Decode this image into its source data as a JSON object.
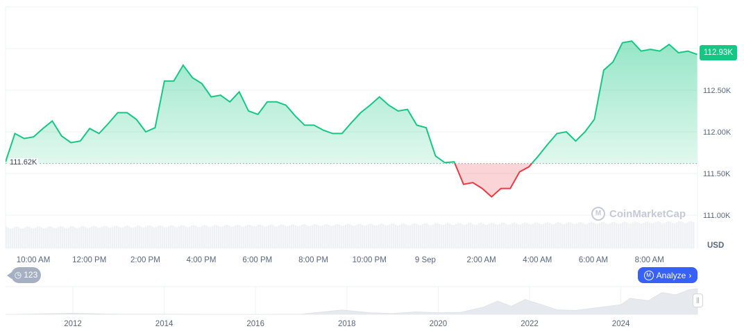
{
  "chart_data": {
    "type": "area",
    "currency_label": "USD",
    "last_price_label": "112.93K",
    "baseline_label": "111.62K",
    "baseline": 111.62,
    "ylim": [
      110.6,
      113.5
    ],
    "y_ticks": [
      {
        "value": 111.0,
        "label": "111.00K"
      },
      {
        "value": 111.5,
        "label": "111.50K"
      },
      {
        "value": 112.0,
        "label": "112.00K"
      },
      {
        "value": 112.5,
        "label": "112.50K"
      }
    ],
    "x_ticks": [
      "10:00 AM",
      "12:00 PM",
      "2:00 PM",
      "4:00 PM",
      "6:00 PM",
      "8:00 PM",
      "10:00 PM",
      "9 Sep",
      "2:00 AM",
      "4:00 AM",
      "6:00 AM",
      "8:00 AM"
    ],
    "x_start": "8 Sep 09:00",
    "x_interval_minutes": 20,
    "values_k_usd": [
      111.64,
      111.98,
      111.92,
      111.94,
      112.04,
      112.13,
      111.95,
      111.87,
      111.89,
      112.04,
      111.98,
      112.1,
      112.23,
      112.23,
      112.15,
      112.0,
      112.05,
      112.61,
      112.61,
      112.8,
      112.65,
      112.58,
      112.42,
      112.44,
      112.36,
      112.48,
      112.25,
      112.21,
      112.36,
      112.36,
      112.32,
      112.19,
      112.08,
      112.08,
      112.02,
      111.98,
      111.98,
      112.11,
      112.23,
      112.32,
      112.42,
      112.32,
      112.25,
      112.27,
      112.08,
      112.05,
      111.71,
      111.63,
      111.64,
      111.37,
      111.39,
      111.32,
      111.22,
      111.32,
      111.32,
      111.52,
      111.58,
      111.71,
      111.85,
      111.98,
      112.0,
      111.89,
      112.0,
      112.15,
      112.74,
      112.84,
      113.07,
      113.09,
      112.97,
      112.99,
      112.97,
      113.05,
      112.95,
      112.97,
      112.93
    ],
    "colors": {
      "up": "#16c784",
      "down": "#ea3943",
      "volume": "#eff2f5",
      "grid": "#eff2f5"
    },
    "navigator": {
      "type": "area",
      "year_ticks": [
        "2012",
        "2014",
        "2016",
        "2018",
        "2020",
        "2022",
        "2024"
      ],
      "years": [
        2010.6,
        2012,
        2013,
        2014,
        2015,
        2016,
        2017,
        2017.9,
        2018.5,
        2019,
        2019.5,
        2020,
        2020.5,
        2021,
        2021.3,
        2021.6,
        2021.9,
        2022.3,
        2022.6,
        2023,
        2023.5,
        2024,
        2024.2,
        2024.6,
        2024.9,
        2025.2,
        2025.5,
        2025.7
      ],
      "price_k_usd": [
        0.1,
        5,
        0.8,
        0.8,
        0.3,
        0.4,
        1,
        19,
        7,
        3.5,
        11,
        7,
        9,
        32,
        58,
        35,
        65,
        40,
        20,
        17,
        30,
        42,
        70,
        60,
        95,
        85,
        108,
        112
      ]
    }
  },
  "controls": {
    "history_count": "123",
    "analyze_label": "Analyze",
    "watermark": "CoinMarketCap"
  }
}
